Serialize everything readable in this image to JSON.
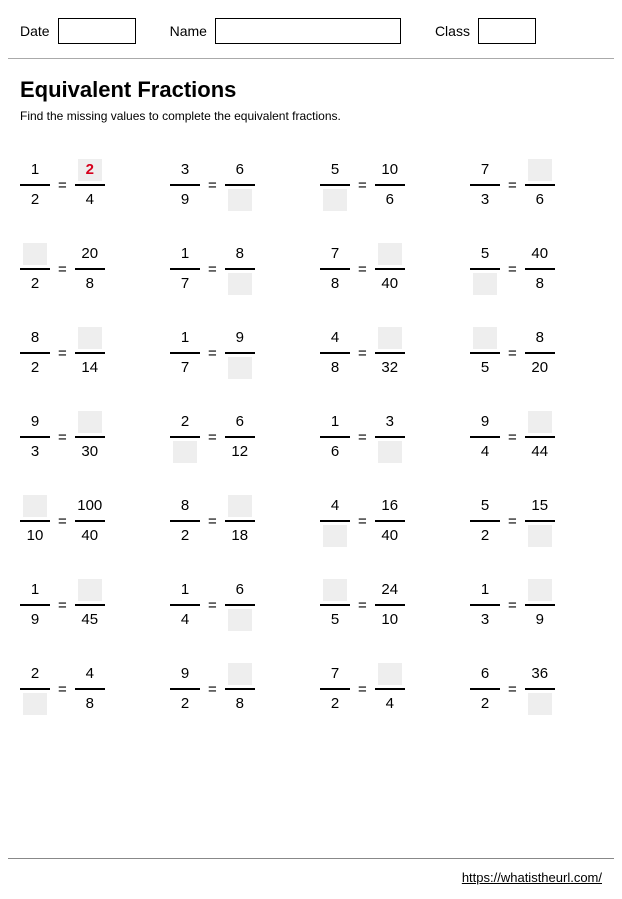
{
  "header": {
    "date_label": "Date",
    "name_label": "Name",
    "class_label": "Class",
    "date_width": 78,
    "name_width": 186,
    "class_width": 58
  },
  "title": "Equivalent Fractions",
  "instruction": "Find the missing values to complete the equivalent fractions.",
  "footer_url": "https://whatistheurl.com/",
  "problems": [
    {
      "a_num": "1",
      "a_den": "2",
      "b_num": "2",
      "b_den": "4",
      "blank": "b_num",
      "show_answer": true
    },
    {
      "a_num": "3",
      "a_den": "9",
      "b_num": "6",
      "b_den": "",
      "blank": "b_den"
    },
    {
      "a_num": "5",
      "a_den": "",
      "b_num": "10",
      "b_den": "6",
      "blank": "a_den"
    },
    {
      "a_num": "7",
      "a_den": "3",
      "b_num": "",
      "b_den": "6",
      "blank": "b_num"
    },
    {
      "a_num": "",
      "a_den": "2",
      "b_num": "20",
      "b_den": "8",
      "blank": "a_num"
    },
    {
      "a_num": "1",
      "a_den": "7",
      "b_num": "8",
      "b_den": "",
      "blank": "b_den"
    },
    {
      "a_num": "7",
      "a_den": "8",
      "b_num": "",
      "b_den": "40",
      "blank": "b_num"
    },
    {
      "a_num": "5",
      "a_den": "",
      "b_num": "40",
      "b_den": "8",
      "blank": "a_den"
    },
    {
      "a_num": "8",
      "a_den": "2",
      "b_num": "",
      "b_den": "14",
      "blank": "b_num"
    },
    {
      "a_num": "1",
      "a_den": "7",
      "b_num": "9",
      "b_den": "",
      "blank": "b_den"
    },
    {
      "a_num": "4",
      "a_den": "8",
      "b_num": "",
      "b_den": "32",
      "blank": "b_num"
    },
    {
      "a_num": "",
      "a_den": "5",
      "b_num": "8",
      "b_den": "20",
      "blank": "a_num"
    },
    {
      "a_num": "9",
      "a_den": "3",
      "b_num": "",
      "b_den": "30",
      "blank": "b_num"
    },
    {
      "a_num": "2",
      "a_den": "",
      "b_num": "6",
      "b_den": "12",
      "blank": "a_den"
    },
    {
      "a_num": "1",
      "a_den": "6",
      "b_num": "3",
      "b_den": "",
      "blank": "b_den"
    },
    {
      "a_num": "9",
      "a_den": "4",
      "b_num": "",
      "b_den": "44",
      "blank": "b_num"
    },
    {
      "a_num": "",
      "a_den": "10",
      "b_num": "100",
      "b_den": "40",
      "blank": "a_num"
    },
    {
      "a_num": "8",
      "a_den": "2",
      "b_num": "",
      "b_den": "18",
      "blank": "b_num"
    },
    {
      "a_num": "4",
      "a_den": "",
      "b_num": "16",
      "b_den": "40",
      "blank": "a_den"
    },
    {
      "a_num": "5",
      "a_den": "2",
      "b_num": "15",
      "b_den": "",
      "blank": "b_den"
    },
    {
      "a_num": "1",
      "a_den": "9",
      "b_num": "",
      "b_den": "45",
      "blank": "b_num"
    },
    {
      "a_num": "1",
      "a_den": "4",
      "b_num": "6",
      "b_den": "",
      "blank": "b_den"
    },
    {
      "a_num": "",
      "a_den": "5",
      "b_num": "24",
      "b_den": "10",
      "blank": "a_num"
    },
    {
      "a_num": "1",
      "a_den": "3",
      "b_num": "",
      "b_den": "9",
      "blank": "b_num"
    },
    {
      "a_num": "2",
      "a_den": "",
      "b_num": "4",
      "b_den": "8",
      "blank": "a_den"
    },
    {
      "a_num": "9",
      "a_den": "2",
      "b_num": "",
      "b_den": "8",
      "blank": "b_num"
    },
    {
      "a_num": "7",
      "a_den": "2",
      "b_num": "",
      "b_den": "4",
      "blank": "b_num"
    },
    {
      "a_num": "6",
      "a_den": "2",
      "b_num": "36",
      "b_den": "",
      "blank": "b_den"
    }
  ]
}
